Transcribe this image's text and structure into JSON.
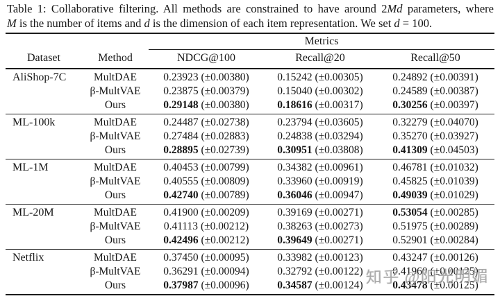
{
  "caption": {
    "line1": {
      "t1": "Table 1: Collaborative filtering. All methods are constrained to have around 2",
      "m1": "Md",
      "t2": " parameters, where"
    },
    "line2": {
      "m1": "M",
      "t1": " is the number of items and ",
      "m2": "d",
      "t2": " is the dimension of each item representation. We set ",
      "m3": "d",
      "t3": " = 100."
    }
  },
  "table": {
    "metrics_header": "Metrics",
    "columns": {
      "dataset": "Dataset",
      "method": "Method",
      "ndcg": "NDCG@100",
      "recall20": "Recall@20",
      "recall50": "Recall@50"
    },
    "groups": [
      {
        "dataset": "AliShop-7C",
        "rows": [
          {
            "method": "MultDAE",
            "ndcg": {
              "v": "0.23923",
              "pm": "(±0.00380)"
            },
            "recall20": {
              "v": "0.15242",
              "pm": "(±0.00305)"
            },
            "recall50": {
              "v": "0.24892",
              "pm": "(±0.00391)"
            }
          },
          {
            "method": "β-MultVAE",
            "ndcg": {
              "v": "0.23875",
              "pm": "(±0.00379)"
            },
            "recall20": {
              "v": "0.15040",
              "pm": "(±0.00302)"
            },
            "recall50": {
              "v": "0.24589",
              "pm": "(±0.00387)"
            }
          },
          {
            "method": "Ours",
            "ndcg": {
              "v": "0.29148",
              "pm": "(±0.00380)"
            },
            "recall20": {
              "v": "0.18616",
              "pm": "(±0.00317)"
            },
            "recall50": {
              "v": "0.30256",
              "pm": "(±0.00397)"
            }
          }
        ]
      },
      {
        "dataset": "ML-100k",
        "rows": [
          {
            "method": "MultDAE",
            "ndcg": {
              "v": "0.24487",
              "pm": "(±0.02738)"
            },
            "recall20": {
              "v": "0.23794",
              "pm": "(±0.03605)"
            },
            "recall50": {
              "v": "0.32279",
              "pm": "(±0.04070)"
            }
          },
          {
            "method": "β-MultVAE",
            "ndcg": {
              "v": "0.27484",
              "pm": "(±0.02883)"
            },
            "recall20": {
              "v": "0.24838",
              "pm": "(±0.03294)"
            },
            "recall50": {
              "v": "0.35270",
              "pm": "(±0.03927)"
            }
          },
          {
            "method": "Ours",
            "ndcg": {
              "v": "0.28895",
              "pm": "(±0.02739)"
            },
            "recall20": {
              "v": "0.30951",
              "pm": "(±0.03808)"
            },
            "recall50": {
              "v": "0.41309",
              "pm": "(±0.04503)"
            }
          }
        ]
      },
      {
        "dataset": "ML-1M",
        "rows": [
          {
            "method": "MultDAE",
            "ndcg": {
              "v": "0.40453",
              "pm": "(±0.00799)"
            },
            "recall20": {
              "v": "0.34382",
              "pm": "(±0.00961)"
            },
            "recall50": {
              "v": "0.46781",
              "pm": "(±0.01032)"
            }
          },
          {
            "method": "β-MultVAE",
            "ndcg": {
              "v": "0.40555",
              "pm": "(±0.00809)"
            },
            "recall20": {
              "v": "0.33960",
              "pm": "(±0.00919)"
            },
            "recall50": {
              "v": "0.45825",
              "pm": "(±0.01039)"
            }
          },
          {
            "method": "Ours",
            "ndcg": {
              "v": "0.42740",
              "pm": "(±0.00789)"
            },
            "recall20": {
              "v": "0.36046",
              "pm": "(±0.00947)"
            },
            "recall50": {
              "v": "0.49039",
              "pm": "(±0.01029)"
            }
          }
        ]
      },
      {
        "dataset": "ML-20M",
        "rows": [
          {
            "method": "MultDAE",
            "ndcg": {
              "v": "0.41900",
              "pm": "(±0.00209)"
            },
            "recall20": {
              "v": "0.39169",
              "pm": "(±0.00271)"
            },
            "recall50": {
              "v": "0.53054",
              "pm": "(±0.00285)"
            }
          },
          {
            "method": "β-MultVAE",
            "ndcg": {
              "v": "0.41113",
              "pm": "(±0.00212)"
            },
            "recall20": {
              "v": "0.38263",
              "pm": "(±0.00273)"
            },
            "recall50": {
              "v": "0.51975",
              "pm": "(±0.00289)"
            }
          },
          {
            "method": "Ours",
            "ndcg": {
              "v": "0.42496",
              "pm": "(±0.00212)"
            },
            "recall20": {
              "v": "0.39649",
              "pm": "(±0.00271)"
            },
            "recall50": {
              "v": "0.52901",
              "pm": "(±0.00284)"
            }
          }
        ]
      },
      {
        "dataset": "Netflix",
        "rows": [
          {
            "method": "MultDAE",
            "ndcg": {
              "v": "0.37450",
              "pm": "(±0.00095)"
            },
            "recall20": {
              "v": "0.33982",
              "pm": "(±0.00123)"
            },
            "recall50": {
              "v": "0.43247",
              "pm": "(±0.00126)"
            }
          },
          {
            "method": "β-MultVAE",
            "ndcg": {
              "v": "0.36291",
              "pm": "(±0.00094)"
            },
            "recall20": {
              "v": "0.32792",
              "pm": "(±0.00122)"
            },
            "recall50": {
              "v": "0.41960",
              "pm": "(±0.00125)"
            }
          },
          {
            "method": "Ours",
            "ndcg": {
              "v": "0.37987",
              "pm": "(±0.00096)"
            },
            "recall20": {
              "v": "0.34587",
              "pm": "(±0.00124)"
            },
            "recall50": {
              "v": "0.43478",
              "pm": "(±0.00125)"
            }
          }
        ]
      }
    ]
  },
  "watermark": "知乎 @阳光明媚"
}
